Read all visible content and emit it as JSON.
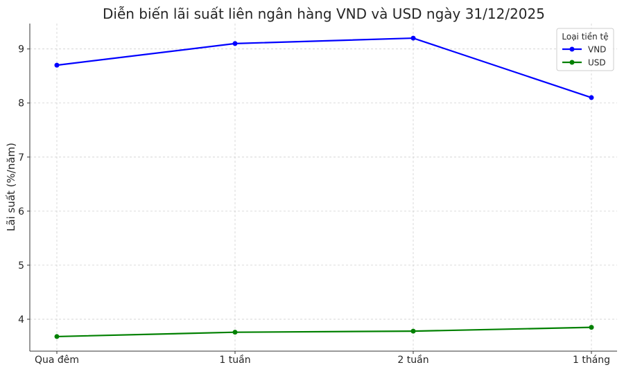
{
  "chart_data": {
    "type": "line",
    "title": "Diễn biến lãi suất liên ngân hàng VND và USD ngày 31/12/2025",
    "xlabel": "",
    "ylabel": "Lãi suất (%/năm)",
    "categories": [
      "Qua đêm",
      "1 tuần",
      "2 tuần",
      "1 tháng"
    ],
    "ylim": [
      3.41,
      9.47
    ],
    "yticks": [
      4,
      5,
      6,
      7,
      8,
      9
    ],
    "grid": true,
    "legend": {
      "title": "Loại tiền tệ",
      "placement": "top-right"
    },
    "series": [
      {
        "name": "VND",
        "color": "#0000ff",
        "values": [
          8.7,
          9.1,
          9.2,
          8.1
        ]
      },
      {
        "name": "USD",
        "color": "#008000",
        "values": [
          3.68,
          3.76,
          3.78,
          3.85
        ]
      }
    ]
  }
}
